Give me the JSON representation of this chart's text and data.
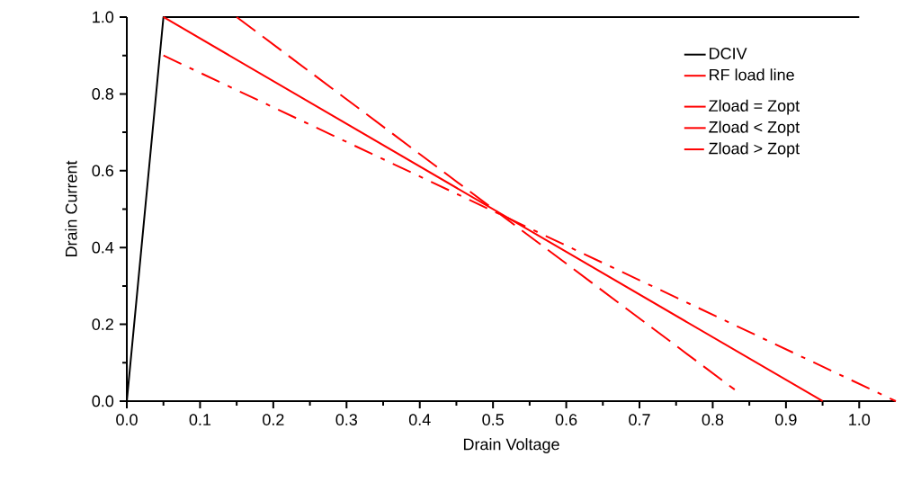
{
  "chart_data": {
    "type": "line",
    "xlabel": "Drain Voltage",
    "ylabel": "Drain Current",
    "legend_title": "RF load line",
    "legend": "top right",
    "grid": false,
    "xlim": [
      0,
      1.05
    ],
    "ylim": [
      0,
      1.0
    ],
    "xticks": [
      {
        "value": 0,
        "label": "0.0"
      },
      {
        "value": 0.1,
        "label": "0.1"
      },
      {
        "value": 0.2,
        "label": "0.2"
      },
      {
        "value": 0.3,
        "label": "0.3"
      },
      {
        "value": 0.4,
        "label": "0.4"
      },
      {
        "value": 0.5,
        "label": "0.5"
      },
      {
        "value": 0.6,
        "label": "0.6"
      },
      {
        "value": 0.7,
        "label": "0.7"
      },
      {
        "value": 0.8,
        "label": "0.8"
      },
      {
        "value": 0.9,
        "label": "0.9"
      },
      {
        "value": 1.0,
        "label": "1.0"
      }
    ],
    "yticks": [
      {
        "value": 0,
        "label": "0.0"
      },
      {
        "value": 0.2,
        "label": "0.2"
      },
      {
        "value": 0.4,
        "label": "0.4"
      },
      {
        "value": 0.6,
        "label": "0.6"
      },
      {
        "value": 0.8,
        "label": "0.8"
      },
      {
        "value": 1.0,
        "label": "1.0"
      }
    ],
    "series": [
      {
        "name": "DCIV",
        "color": "#000000",
        "line_style": "solid",
        "x": [
          0,
          0.05,
          1.0
        ],
        "values": [
          0,
          1.0,
          1.0
        ]
      },
      {
        "name": "Zload = Zopt",
        "color": "#ff0000",
        "line_style": "solid",
        "x": [
          0.05,
          0.95
        ],
        "values": [
          1.0,
          0
        ]
      },
      {
        "name": "Zload < Zopt",
        "color": "#ff0000",
        "line_style": "dashed",
        "x": [
          0.15,
          0.83
        ],
        "values": [
          1.0,
          0.03
        ]
      },
      {
        "name": "Zload > Zopt",
        "color": "#ff0000",
        "line_style": "dashdot",
        "x": [
          0.05,
          1.05
        ],
        "values": [
          0.9,
          0
        ]
      }
    ]
  }
}
